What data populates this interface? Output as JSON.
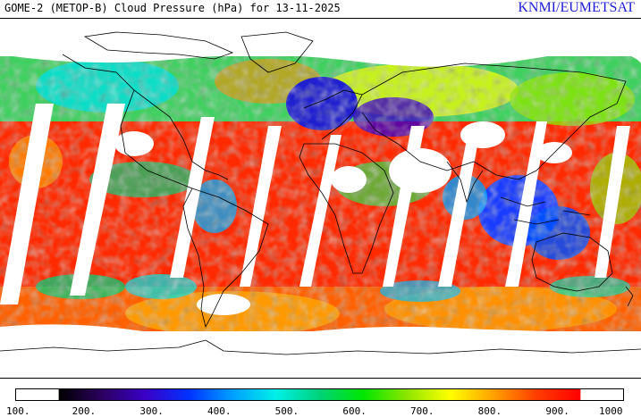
{
  "header": {
    "title": "GOME-2 (METOP-B) Cloud Pressure (hPa) for 13-11-2025",
    "credit": "KNMI/EUMETSAT"
  },
  "colorbar": {
    "ticks": [
      "100.",
      "200.",
      "300.",
      "400.",
      "500.",
      "600.",
      "700.",
      "800.",
      "900.",
      "1000"
    ],
    "min": 100,
    "max": 1000,
    "colors": [
      "#000000",
      "#2b0060",
      "#3a00c8",
      "#0032ff",
      "#00a0ff",
      "#00f0e8",
      "#00d27a",
      "#00e600",
      "#8ce600",
      "#ffff00",
      "#ffa000",
      "#ff3c00",
      "#ff0000"
    ]
  },
  "map": {
    "projection": "equirectangular",
    "missing_data_color": "#ffffff",
    "coastline_color": "#000000"
  }
}
